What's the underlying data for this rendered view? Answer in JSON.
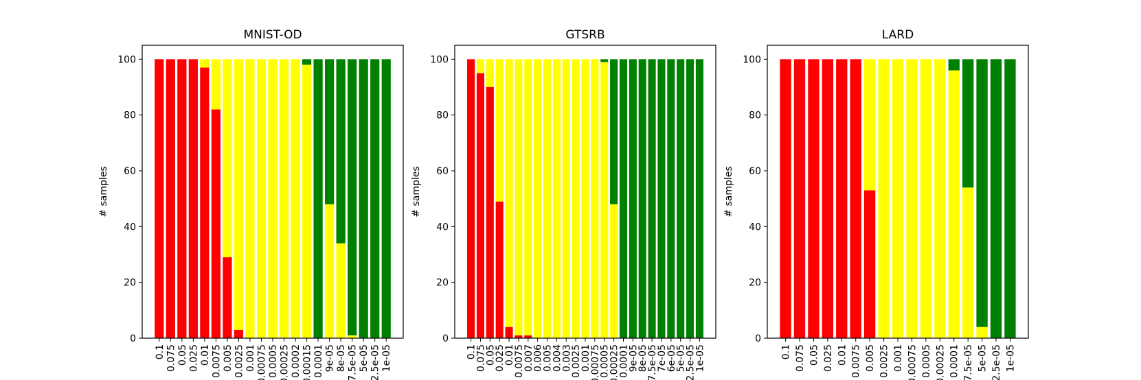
{
  "colors": {
    "red": "#ff0000",
    "yellow": "#ffff00",
    "green": "#008000"
  },
  "chart_data": [
    {
      "type": "bar",
      "stacking": "stacked",
      "title": "MNIST-OD",
      "xlabel": "",
      "ylabel": "# samples",
      "ylim": [
        0,
        105
      ],
      "yticks": [
        0,
        20,
        40,
        60,
        80,
        100
      ],
      "categories": [
        "0.1",
        "0.075",
        "0.05",
        "0.025",
        "0.01",
        "0.0075",
        "0.005",
        "0.0025",
        "0.001",
        "0.00075",
        "0.0005",
        "0.00025",
        "0.0002",
        "0.00015",
        "0.0001",
        "9e-05",
        "8e-05",
        "7.5e-05",
        "5e-05",
        "2.5e-05",
        "1e-05"
      ],
      "tick_labels": [
        "0.1",
        "0.075",
        "0.05",
        "0.025",
        "0.01",
        "0.0075",
        "0.005",
        "0.0025",
        "0.001",
        "0.00075",
        "0.0005",
        "0.00025",
        "0.0002",
        "0.00015",
        "0.0001",
        "9e-05",
        "8e-05",
        "7.5e-05",
        "5e-05",
        "2.5e-05",
        "1e-05"
      ],
      "series": [
        {
          "name": "red",
          "color": "#ff0000",
          "values": [
            100,
            100,
            100,
            100,
            97,
            82,
            29,
            3,
            0,
            0,
            0,
            0,
            0,
            0,
            0,
            0,
            0,
            0,
            0,
            0,
            0
          ]
        },
        {
          "name": "yellow",
          "color": "#ffff00",
          "values": [
            0,
            0,
            0,
            0,
            3,
            18,
            71,
            97,
            100,
            100,
            100,
            100,
            100,
            98,
            0,
            48,
            34,
            1,
            0,
            0,
            0
          ]
        },
        {
          "name": "green",
          "color": "#008000",
          "values": [
            0,
            0,
            0,
            0,
            0,
            0,
            0,
            0,
            0,
            0,
            0,
            0,
            0,
            2,
            100,
            52,
            66,
            99,
            100,
            100,
            100
          ]
        }
      ]
    },
    {
      "type": "bar",
      "stacking": "stacked",
      "title": "GTSRB",
      "xlabel": "",
      "ylabel": "# samples",
      "ylim": [
        0,
        105
      ],
      "yticks": [
        0,
        20,
        40,
        60,
        80,
        100
      ],
      "categories": [
        "0.1",
        "0.075",
        "0.05",
        "0.025",
        "0.01",
        "0.0075",
        "0.007",
        "0.006",
        "0.005",
        "0.004",
        "0.003",
        "0.0025",
        "0.001",
        "0.00075",
        "0.0005",
        "0.00025",
        "0.0001",
        "9e-05",
        "8e-05",
        "7.5e-05",
        "7e-05",
        "6e-05",
        "5e-05",
        "2.5e-05",
        "1e-05"
      ],
      "tick_labels": [
        "0.1",
        "0.075",
        "0.05",
        "0.025",
        "0.01",
        "0.0075",
        "0.007",
        "0.006",
        "0.005",
        "0.004",
        "0.003",
        "0.0025",
        "0.001",
        "0.00075",
        "0.0005",
        "0.00025",
        "0.0001",
        "9e-05",
        "8e-05",
        "7.5e-05",
        "7e-05",
        "6e-05",
        "5e-05",
        "2.5e-05",
        "1e-05"
      ],
      "series": [
        {
          "name": "red",
          "color": "#ff0000",
          "values": [
            100,
            95,
            90,
            49,
            4,
            1,
            1,
            0,
            0,
            0,
            0,
            0,
            0,
            0,
            0,
            0,
            0,
            0,
            0,
            0,
            0,
            0,
            0,
            0,
            0
          ]
        },
        {
          "name": "yellow",
          "color": "#ffff00",
          "values": [
            0,
            5,
            10,
            51,
            96,
            99,
            99,
            100,
            100,
            100,
            100,
            100,
            100,
            100,
            99,
            48,
            0,
            0,
            0,
            0,
            0,
            0,
            0,
            0,
            0
          ]
        },
        {
          "name": "green",
          "color": "#008000",
          "values": [
            0,
            0,
            0,
            0,
            0,
            0,
            0,
            0,
            0,
            0,
            0,
            0,
            0,
            0,
            1,
            52,
            100,
            100,
            100,
            100,
            100,
            100,
            100,
            100,
            100
          ]
        }
      ]
    },
    {
      "type": "bar",
      "stacking": "stacked",
      "title": "LARD",
      "xlabel": "",
      "ylabel": "# samples",
      "ylim": [
        0,
        105
      ],
      "yticks": [
        0,
        20,
        40,
        60,
        80,
        100
      ],
      "categories": [
        "0.1",
        "0.075",
        "0.05",
        "0.025",
        "0.01",
        "0.0075",
        "0.005",
        "0.0025",
        "0.001",
        "0.00075",
        "0.0005",
        "0.00025",
        "0.0001",
        "7.5e-05",
        "5e-05",
        "2.5e-05",
        "1e-05"
      ],
      "tick_labels": [
        "0.1",
        "0.075",
        "0.05",
        "0.025",
        "0.01",
        "0.0075",
        "0.005",
        "0.0025",
        "0.001",
        "0.00075",
        "0.0005",
        "0.00025",
        "0.0001",
        "7.5e-05",
        "5e-05",
        "2.5e-05",
        "1e-05"
      ],
      "series": [
        {
          "name": "red",
          "color": "#ff0000",
          "values": [
            100,
            100,
            100,
            100,
            100,
            100,
            53,
            0,
            0,
            0,
            0,
            0,
            0,
            0,
            0,
            0,
            0
          ]
        },
        {
          "name": "yellow",
          "color": "#ffff00",
          "values": [
            0,
            0,
            0,
            0,
            0,
            0,
            47,
            100,
            100,
            100,
            100,
            100,
            96,
            54,
            4,
            0,
            0
          ]
        },
        {
          "name": "green",
          "color": "#008000",
          "values": [
            0,
            0,
            0,
            0,
            0,
            0,
            0,
            0,
            0,
            0,
            0,
            0,
            4,
            46,
            96,
            100,
            100
          ]
        }
      ]
    }
  ]
}
